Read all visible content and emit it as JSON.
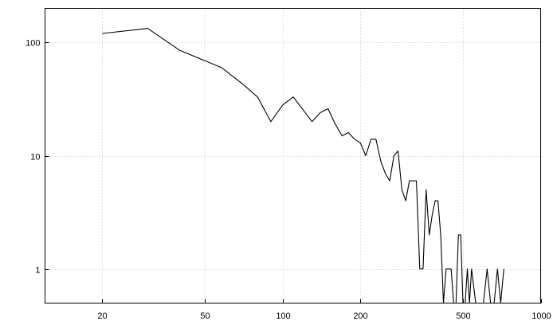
{
  "chart_data": {
    "type": "line",
    "title": "",
    "xlabel": "",
    "ylabel": "",
    "x_scale": "log",
    "y_scale": "log",
    "xlim": [
      12,
      1000
    ],
    "ylim": [
      0.5,
      200
    ],
    "grid": true,
    "x_ticks": [
      20,
      50,
      100,
      200,
      500,
      1000
    ],
    "x_tick_labels": [
      "20",
      "50",
      "100",
      "200",
      "500",
      "1000"
    ],
    "y_ticks": [
      1,
      10,
      100
    ],
    "y_tick_labels": [
      "1",
      "10",
      "100"
    ],
    "series": [
      {
        "color": "#000000",
        "x": [
          20,
          30,
          40,
          58,
          70,
          80,
          90,
          100,
          110,
          130,
          140,
          150,
          160,
          170,
          180,
          190,
          200,
          210,
          220,
          230,
          240,
          250,
          260,
          270,
          280,
          290,
          300,
          310,
          320,
          330,
          340,
          350,
          360,
          370,
          380,
          390,
          400,
          410,
          420,
          430,
          440,
          450,
          460,
          470,
          480,
          490,
          500,
          510,
          520,
          530,
          540,
          560,
          580,
          600,
          620,
          640,
          660,
          680,
          700,
          720
        ],
        "y": [
          120,
          133,
          85,
          60,
          43,
          33,
          20,
          28,
          33,
          20,
          24,
          26,
          19,
          15,
          16,
          14,
          13,
          10,
          14,
          14,
          9,
          7,
          6,
          10,
          11,
          5,
          4,
          6,
          6,
          6,
          1,
          1,
          5,
          2,
          3,
          4,
          4,
          2,
          0.4,
          1,
          1,
          1,
          0.4,
          0.4,
          2,
          2,
          0.4,
          0.4,
          1,
          0.4,
          1,
          0.4,
          0.4,
          0.4,
          1,
          0.4,
          0.4,
          1,
          0.4,
          1
        ]
      }
    ]
  }
}
